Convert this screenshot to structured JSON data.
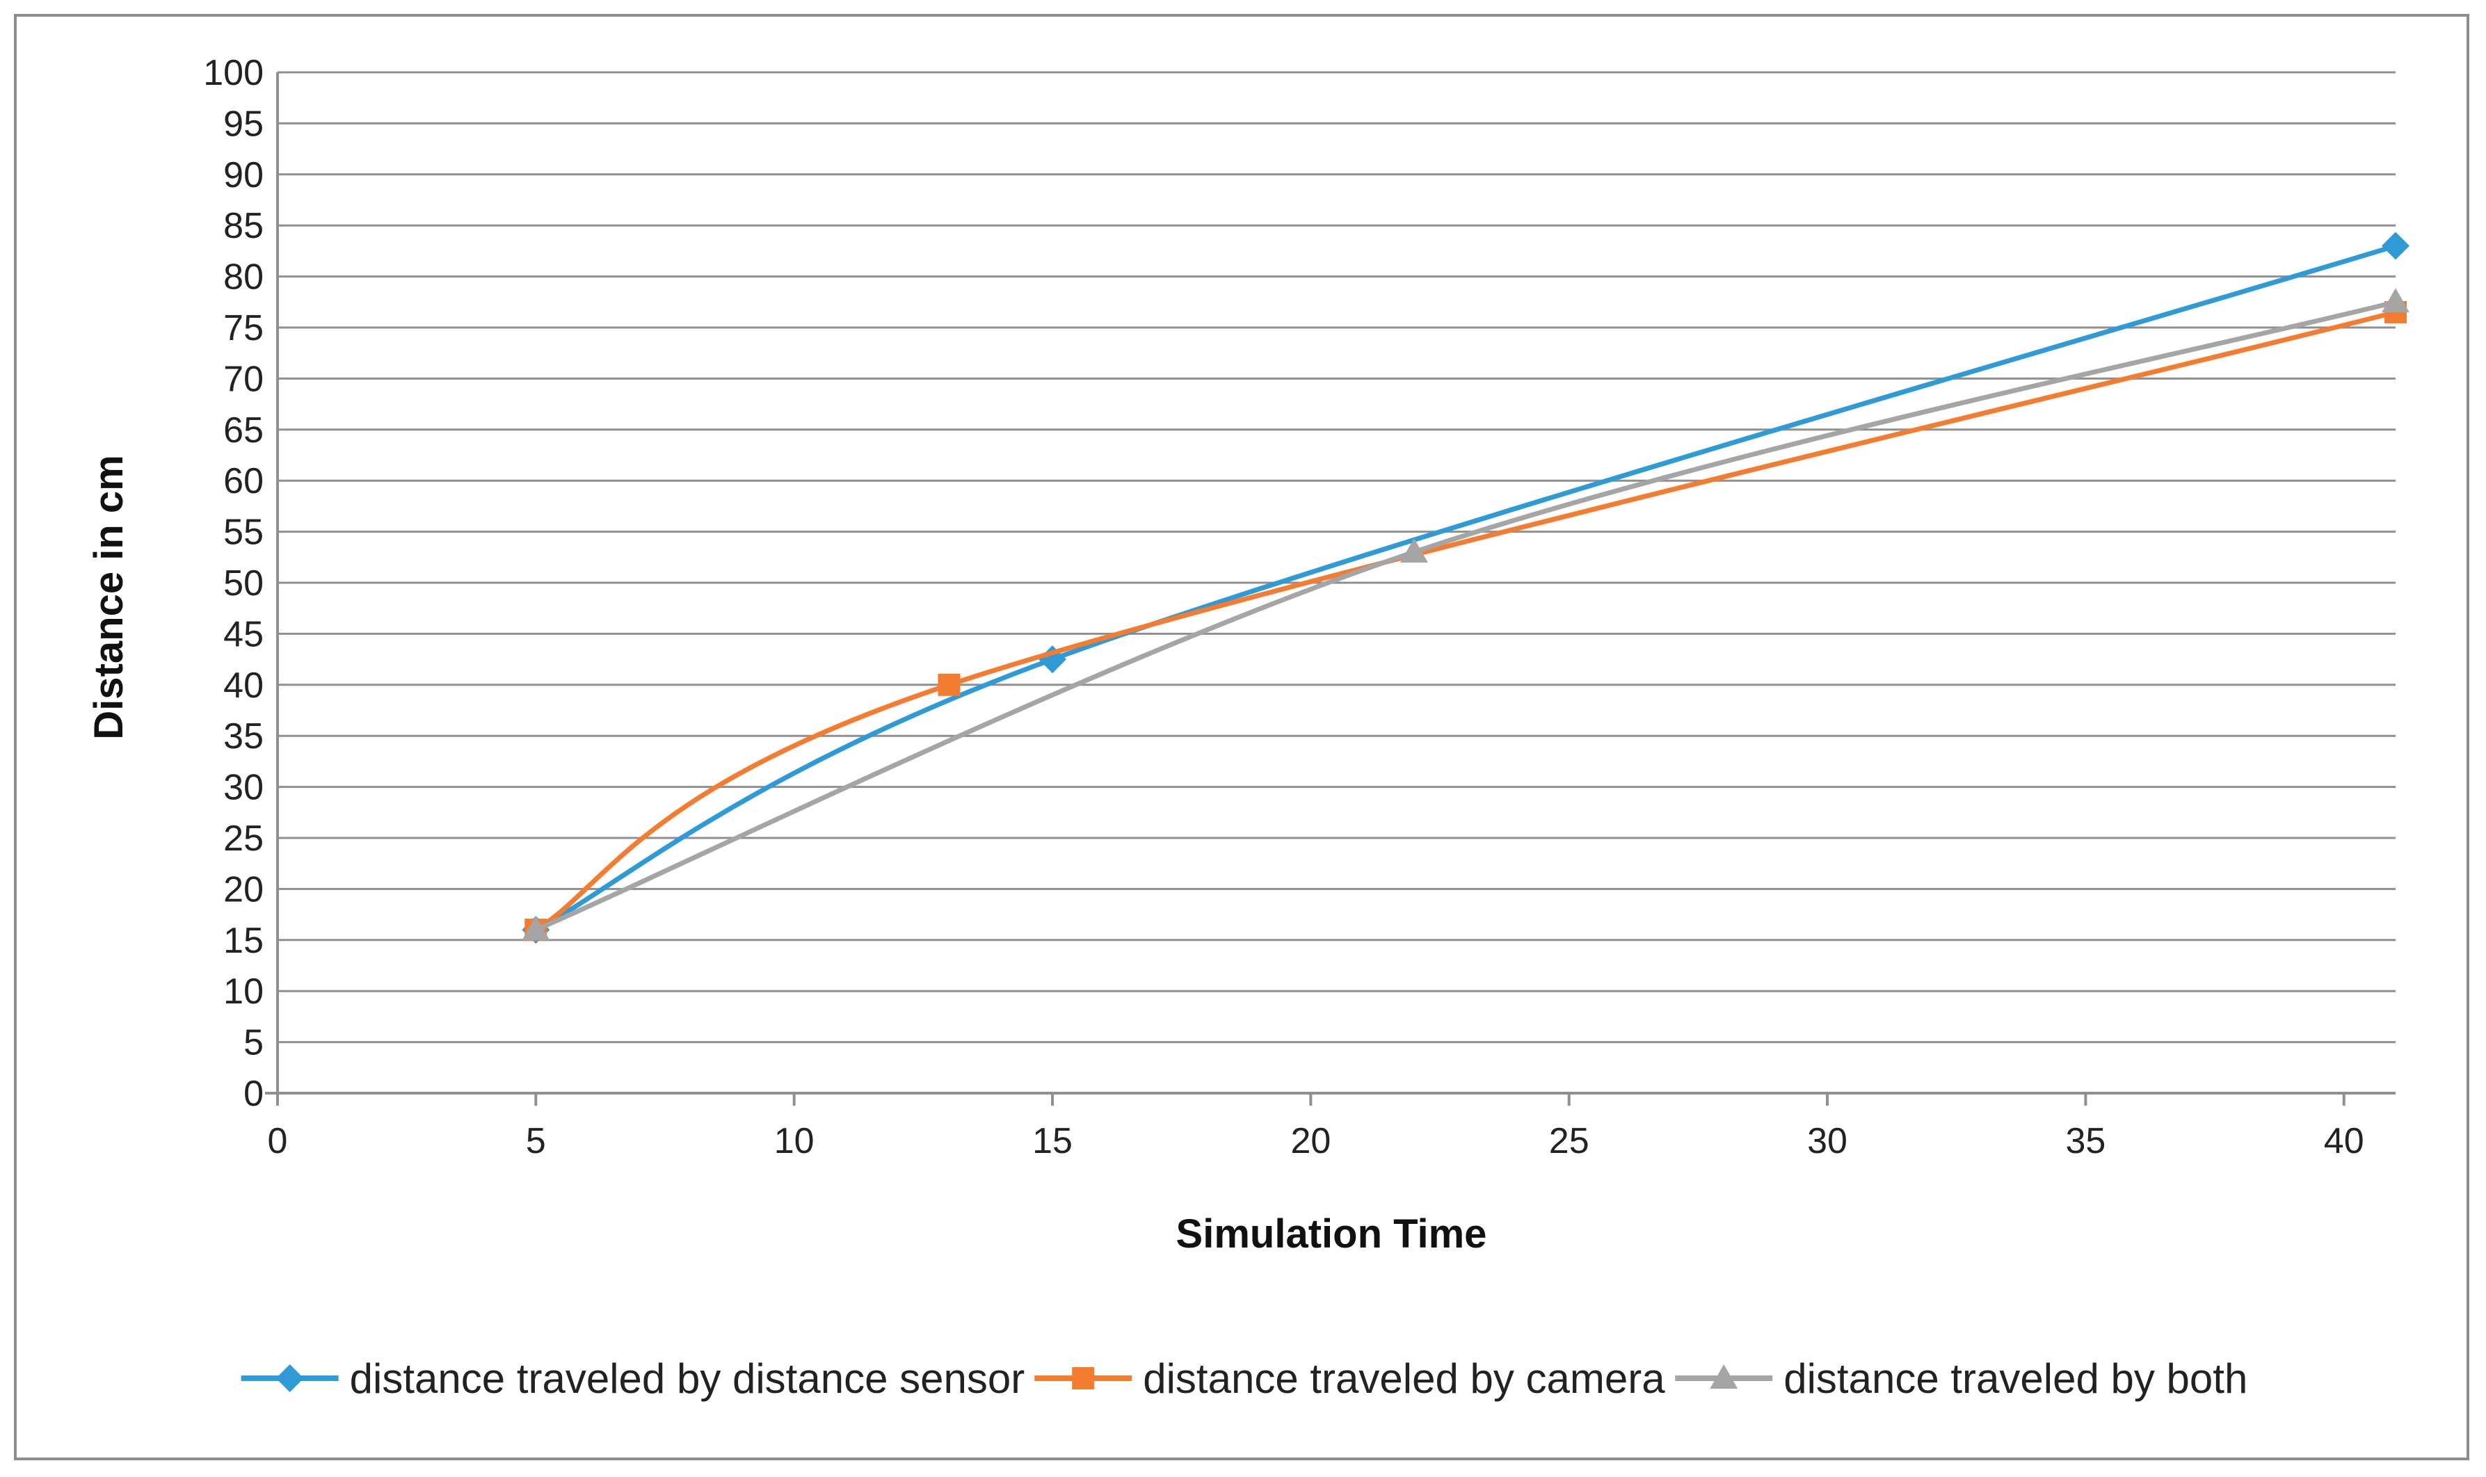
{
  "chart_data": {
    "type": "line",
    "title": "",
    "xlabel": "Simulation Time",
    "ylabel": "Distance in cm",
    "xlim": [
      0,
      41
    ],
    "ylim": [
      0,
      100
    ],
    "x_ticks": [
      0,
      5,
      10,
      15,
      20,
      25,
      30,
      35,
      40
    ],
    "y_ticks": [
      0,
      5,
      10,
      15,
      20,
      25,
      30,
      35,
      40,
      45,
      50,
      55,
      60,
      65,
      70,
      75,
      80,
      85,
      90,
      95,
      100
    ],
    "grid": "horizontal",
    "smoothed": true,
    "legend_position": "bottom",
    "series": [
      {
        "name": "distance traveled by distance sensor",
        "color": "#2e9bd6",
        "marker": "diamond",
        "points": [
          [
            5,
            16
          ],
          [
            15,
            42.5
          ],
          [
            41,
            83
          ]
        ]
      },
      {
        "name": "distance traveled by camera",
        "color": "#f47c30",
        "marker": "square",
        "points": [
          [
            5,
            16
          ],
          [
            13,
            40
          ],
          [
            41,
            76.5
          ]
        ]
      },
      {
        "name": "distance traveled by both",
        "color": "#a5a5a5",
        "marker": "triangle",
        "points": [
          [
            5,
            16
          ],
          [
            22,
            53
          ],
          [
            41,
            77.5
          ]
        ]
      }
    ]
  }
}
